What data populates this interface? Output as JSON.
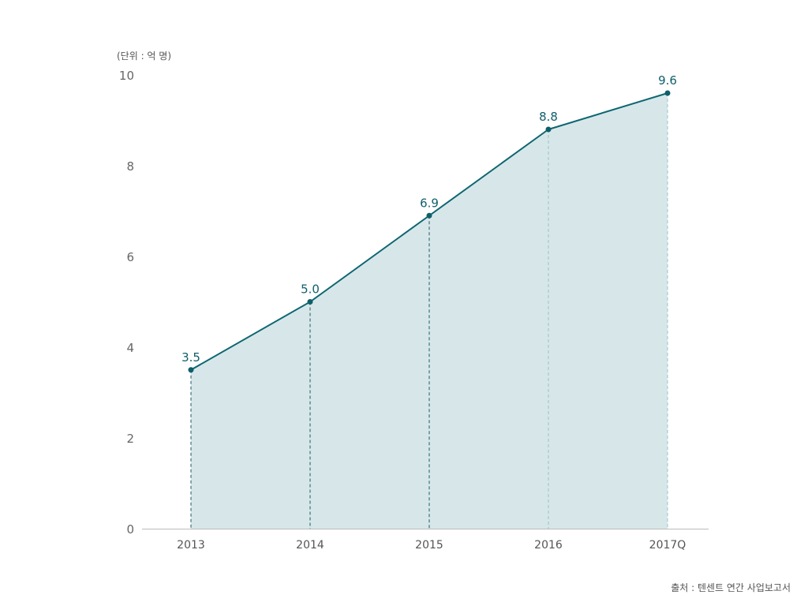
{
  "unit_label": "(단위 : 억 명)",
  "source": "출처 : 텐센트 연간 사업보고서",
  "colors": {
    "line": "#0e6671",
    "area": "#d7e7e9",
    "marker": "#0e5f6b",
    "axis": "#bbbbbb",
    "label": "#0e5f6b"
  },
  "chart_data": {
    "type": "area",
    "categories": [
      "2013",
      "2014",
      "2015",
      "2016",
      "2017Q"
    ],
    "values": [
      3.5,
      5.0,
      6.9,
      8.8,
      9.6
    ],
    "data_labels": [
      "3.5",
      "5.0",
      "6.9",
      "8.8",
      "9.6"
    ],
    "ylim": [
      0,
      10
    ],
    "yticks": [
      "0",
      "2",
      "4",
      "6",
      "8",
      "10"
    ],
    "ytick_values": [
      0,
      2,
      4,
      6,
      8,
      10
    ],
    "grid": false,
    "markers": true
  }
}
